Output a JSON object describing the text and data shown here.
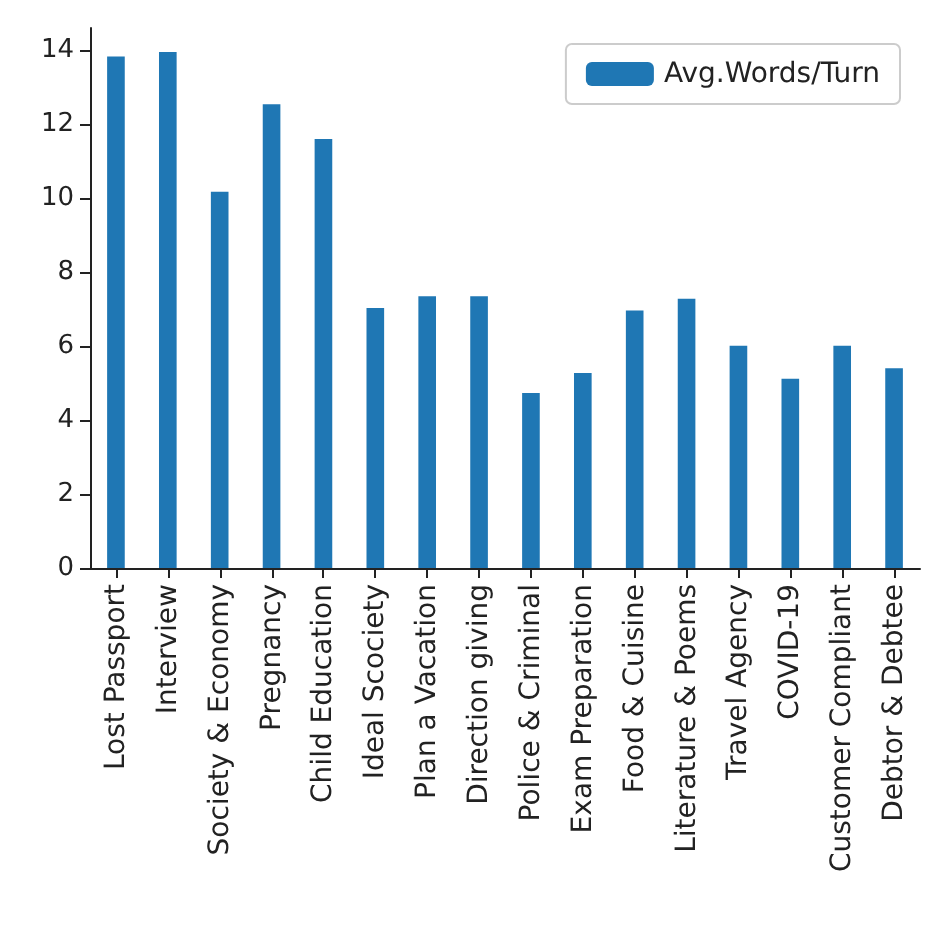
{
  "chart_data": {
    "type": "bar",
    "categories": [
      "Lost Passport",
      "Interview",
      "Society & Economy",
      "Pregnancy",
      "Child Education",
      "Ideal Scociety",
      "Plan a Vacation",
      "Direction giving",
      "Police & Criminal",
      "Exam Preparation",
      "Food & Cuisine",
      "Literature & Poems",
      "Travel Agency",
      "COVID-19",
      "Customer Compliant",
      "Debtor & Debtee"
    ],
    "series": [
      {
        "name": "Avg.Words/Turn",
        "color": "#1f77b4",
        "values": [
          13.83,
          13.95,
          10.17,
          12.54,
          11.6,
          7.03,
          7.35,
          7.35,
          4.73,
          5.27,
          6.96,
          7.28,
          6.01,
          5.12,
          6.01,
          5.4
        ]
      }
    ],
    "ylim": [
      0,
      14.6
    ],
    "yticks": [
      0,
      2,
      4,
      6,
      8,
      10,
      12,
      14
    ],
    "grid": false,
    "legend": "top right"
  }
}
